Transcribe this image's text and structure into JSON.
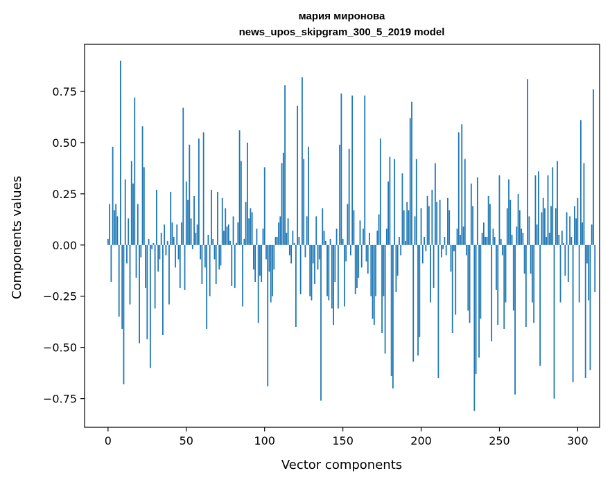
{
  "chart_data": {
    "type": "bar",
    "title": "мария миронова",
    "subtitle": "news_upos_skipgram_300_5_2019 model",
    "xlabel": "Vector components",
    "ylabel": "Components values",
    "xlim": [
      -15,
      314
    ],
    "ylim": [
      -0.89,
      0.98
    ],
    "xticks": [
      0,
      50,
      100,
      150,
      200,
      250,
      300
    ],
    "xtick_labels": [
      "0",
      "50",
      "100",
      "150",
      "200",
      "250",
      "300"
    ],
    "yticks": [
      -0.75,
      -0.5,
      -0.25,
      0.0,
      0.25,
      0.5,
      0.75
    ],
    "ytick_labels": [
      "−0.75",
      "−0.50",
      "−0.25",
      "0.00",
      "0.25",
      "0.50",
      "0.75"
    ],
    "grid": false,
    "bar_color": "#1f77b4",
    "values": [
      0.03,
      0.2,
      -0.18,
      0.48,
      0.17,
      0.2,
      0.14,
      -0.35,
      0.9,
      -0.41,
      -0.68,
      0.32,
      -0.09,
      0.13,
      -0.29,
      0.41,
      0.3,
      0.72,
      -0.16,
      0.2,
      -0.48,
      -0.06,
      0.58,
      0.38,
      -0.21,
      -0.46,
      0.03,
      -0.6,
      -0.02,
      0.01,
      -0.31,
      0.27,
      -0.13,
      -0.07,
      0.06,
      -0.44,
      0.1,
      -0.05,
      0.02,
      -0.29,
      0.26,
      0.11,
      0.04,
      -0.11,
      0.1,
      -0.07,
      -0.21,
      0.11,
      0.67,
      -0.22,
      0.31,
      0.22,
      0.49,
      0.13,
      -0.02,
      0.24,
      0.06,
      0.1,
      0.52,
      -0.07,
      -0.19,
      0.55,
      -0.11,
      -0.41,
      0.05,
      -0.25,
      0.27,
      0.03,
      -0.07,
      -0.19,
      0.26,
      -0.12,
      -0.1,
      0.23,
      0.07,
      0.18,
      0.09,
      0.1,
      0.02,
      -0.2,
      0.14,
      -0.21,
      0.01,
      0.11,
      0.56,
      0.41,
      -0.3,
      0.03,
      0.21,
      0.5,
      0.13,
      0.18,
      0.16,
      -0.12,
      -0.18,
      0.08,
      -0.38,
      -0.15,
      -0.18,
      0.08,
      0.38,
      -0.07,
      -0.69,
      -0.13,
      -0.28,
      -0.25,
      -0.12,
      0.04,
      0.04,
      0.11,
      0.14,
      0.4,
      0.45,
      0.78,
      0.06,
      0.13,
      -0.05,
      -0.09,
      0.07,
      0.01,
      -0.4,
      0.68,
      0.04,
      -0.24,
      0.82,
      0.42,
      -0.06,
      0.14,
      0.48,
      -0.25,
      -0.27,
      -0.09,
      -0.19,
      0.14,
      -0.12,
      -0.07,
      -0.76,
      0.18,
      0.07,
      0.02,
      -0.25,
      -0.27,
      0.03,
      -0.31,
      -0.39,
      -0.18,
      0.08,
      -0.31,
      0.49,
      0.74,
      0.03,
      -0.3,
      -0.08,
      0.2,
      0.47,
      -0.05,
      0.73,
      0.17,
      -0.24,
      -0.21,
      -0.16,
      0.12,
      -0.11,
      0.08,
      0.73,
      -0.08,
      -0.14,
      0.06,
      -0.25,
      -0.36,
      -0.39,
      -0.25,
      0.07,
      0.15,
      0.52,
      -0.43,
      -0.25,
      -0.53,
      0.08,
      0.31,
      0.43,
      -0.64,
      -0.7,
      0.42,
      -0.23,
      -0.15,
      0.04,
      -0.05,
      0.35,
      0.17,
      0.02,
      0.21,
      0.17,
      0.62,
      0.7,
      -0.57,
      0.14,
      0.42,
      -0.54,
      -0.45,
      0.18,
      -0.09,
      0.04,
      -0.03,
      0.24,
      0.19,
      -0.28,
      0.27,
      -0.21,
      0.4,
      0.21,
      -0.65,
      0.22,
      -0.06,
      -0.02,
      0.04,
      -0.05,
      0.23,
      0.17,
      -0.13,
      -0.43,
      -0.03,
      -0.34,
      0.08,
      0.55,
      0.05,
      0.59,
      0.09,
      0.42,
      -0.05,
      -0.32,
      -0.38,
      0.3,
      0.19,
      -0.81,
      -0.63,
      0.33,
      -0.55,
      -0.36,
      0.06,
      0.11,
      0.04,
      0.04,
      0.24,
      0.2,
      -0.47,
      0.08,
      0.04,
      -0.22,
      -0.39,
      0.34,
      0.03,
      -0.05,
      -0.41,
      -0.28,
      0.18,
      0.32,
      0.22,
      0.05,
      -0.32,
      -0.73,
      0.09,
      0.25,
      0.17,
      0.08,
      0.06,
      -0.14,
      -0.4,
      0.81,
      0.14,
      -0.14,
      -0.28,
      -0.38,
      0.34,
      0.1,
      0.36,
      -0.59,
      0.16,
      0.23,
      0.18,
      0.04,
      0.34,
      0.06,
      0.19,
      0.38,
      -0.75,
      0.18,
      0.41,
      0.05,
      -0.28,
      0.07,
      0.01,
      -0.15,
      0.16,
      -0.18,
      0.14,
      0.04,
      -0.67,
      0.19,
      0.13,
      0.23,
      -0.28,
      0.61,
      0.11,
      0.4,
      -0.65,
      -0.09,
      -0.27,
      -0.61,
      0.1,
      0.76,
      -0.23
    ]
  }
}
